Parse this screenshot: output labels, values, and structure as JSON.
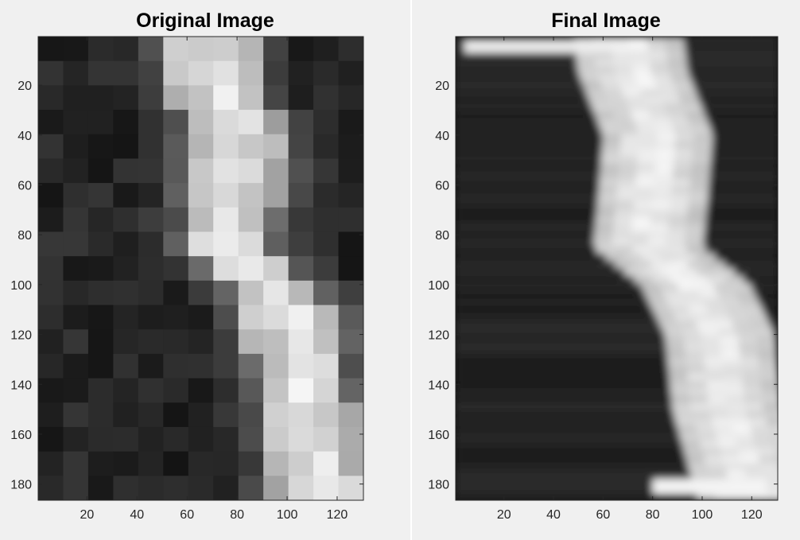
{
  "figure": {
    "panels": [
      {
        "title": "Original Image"
      },
      {
        "title": "Final Image"
      }
    ]
  },
  "chart_data": [
    {
      "type": "heatmap",
      "title": "Original Image",
      "colormap": "gray",
      "xlim": [
        0.5,
        130.5
      ],
      "ylim": [
        0.5,
        186.5
      ],
      "y_direction": "reversed",
      "xticks": [
        20,
        40,
        60,
        80,
        100,
        120
      ],
      "yticks": [
        20,
        40,
        60,
        80,
        100,
        120,
        140,
        160,
        180
      ],
      "band_center_left_edge": [
        [
          0,
          52
        ],
        [
          15,
          50
        ],
        [
          40,
          60
        ],
        [
          65,
          58
        ],
        [
          85,
          56
        ],
        [
          100,
          75
        ],
        [
          120,
          85
        ],
        [
          150,
          88
        ],
        [
          186,
          95
        ]
      ],
      "band_width": 38
    },
    {
      "type": "heatmap",
      "title": "Final Image",
      "colormap": "gray",
      "xlim": [
        0.5,
        130.5
      ],
      "ylim": [
        0.5,
        186.5
      ],
      "y_direction": "reversed",
      "xticks": [
        20,
        40,
        60,
        80,
        100,
        120
      ],
      "yticks": [
        20,
        40,
        60,
        80,
        100,
        120,
        140,
        160,
        180
      ],
      "band_center_left_edge": [
        [
          0,
          48
        ],
        [
          15,
          50
        ],
        [
          40,
          60
        ],
        [
          65,
          58
        ],
        [
          85,
          56
        ],
        [
          100,
          75
        ],
        [
          120,
          85
        ],
        [
          150,
          88
        ],
        [
          186,
          98
        ]
      ],
      "band_width": 44
    }
  ]
}
